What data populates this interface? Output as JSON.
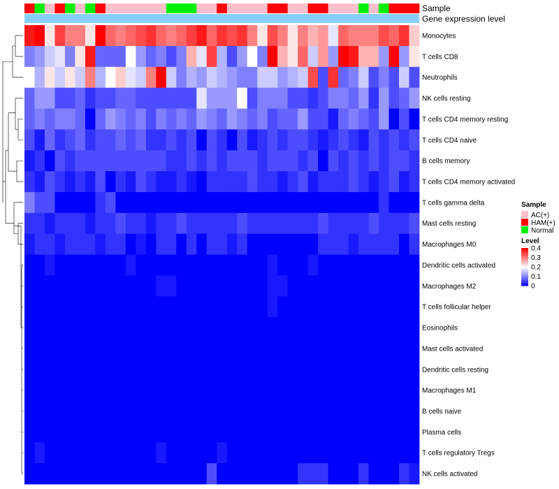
{
  "chart_data": {
    "type": "heatmap",
    "title": "",
    "annotation_labels": [
      "Sample",
      "Gene expression level"
    ],
    "sample_groups": [
      "HAM(+)",
      "Normal",
      "AC(+)",
      "HAM(+)",
      "Normal",
      "AC(+)",
      "Normal",
      "HAM(+)",
      "AC(+)",
      "AC(+)",
      "AC(+)",
      "AC(+)",
      "AC(+)",
      "AC(+)",
      "Normal",
      "Normal",
      "Normal",
      "AC(+)",
      "AC(+)",
      "HAM(+)",
      "AC(+)",
      "AC(+)",
      "AC(+)",
      "AC(+)",
      "HAM(+)",
      "HAM(+)",
      "AC(+)",
      "AC(+)",
      "HAM(+)",
      "HAM(+)",
      "AC(+)",
      "AC(+)",
      "AC(+)",
      "Normal",
      "AC(+)",
      "Normal",
      "HAM(+)",
      "HAM(+)",
      "HAM(+)"
    ],
    "group_colors": {
      "AC(+)": "#FFC0CB",
      "HAM(+)": "#FF0000",
      "Normal": "#00EE00"
    },
    "expression_bar_color": "#87CEFA",
    "rows": [
      "Monocytes",
      "T cells CD8",
      "Neutrophils",
      "NK cells resting",
      "T cells CD4 memory resting",
      "T cells CD4 naive",
      "B cells memory",
      "T cells CD4 memory activated",
      "T cells gamma delta",
      "Mast cells resting",
      "Macrophages M0",
      "Dendritic cells activated",
      "Macrophages M2",
      "T cells follicular helper",
      "Eosinophils",
      "Mast cells activated",
      "Dendritic cells resting",
      "Macrophages M1",
      "B cells naive",
      "Plasma cells",
      "T cells regulatory  Tregs",
      "NK cells activated"
    ],
    "values": [
      [
        0.38,
        0.4,
        0.22,
        0.35,
        0.3,
        0.3,
        0.22,
        0.4,
        0.32,
        0.3,
        0.32,
        0.34,
        0.36,
        0.32,
        0.3,
        0.32,
        0.35,
        0.38,
        0.32,
        0.36,
        0.34,
        0.36,
        0.3,
        0.22,
        0.34,
        0.3,
        0.22,
        0.3,
        0.26,
        0.28,
        0.18,
        0.32,
        0.3,
        0.3,
        0.3,
        0.34,
        0.32,
        0.36,
        0.24
      ],
      [
        0.1,
        0.12,
        0.16,
        0.18,
        0.1,
        0.22,
        0.38,
        0.08,
        0.08,
        0.08,
        0.2,
        0.12,
        0.08,
        0.1,
        0.06,
        0.1,
        0.26,
        0.18,
        0.35,
        0.14,
        0.06,
        0.12,
        0.2,
        0.1,
        0.4,
        0.26,
        0.22,
        0.32,
        0.16,
        0.28,
        0.12,
        0.4,
        0.38,
        0.26,
        0.26,
        0.12,
        0.4,
        0.12,
        0.22
      ],
      [
        0.2,
        0.14,
        0.22,
        0.16,
        0.22,
        0.16,
        0.3,
        0.14,
        0.2,
        0.24,
        0.18,
        0.16,
        0.3,
        0.4,
        0.16,
        0.1,
        0.14,
        0.12,
        0.16,
        0.14,
        0.12,
        0.1,
        0.1,
        0.16,
        0.16,
        0.12,
        0.14,
        0.16,
        0.34,
        0.06,
        0.36,
        0.08,
        0.1,
        0.16,
        0.06,
        0.1,
        0.06,
        0.16,
        0.06
      ],
      [
        0.08,
        0.12,
        0.12,
        0.06,
        0.06,
        0.08,
        0.04,
        0.06,
        0.06,
        0.08,
        0.08,
        0.06,
        0.06,
        0.06,
        0.06,
        0.06,
        0.06,
        0.18,
        0.12,
        0.12,
        0.12,
        0.2,
        0.06,
        0.1,
        0.1,
        0.1,
        0.06,
        0.06,
        0.04,
        0.06,
        0.1,
        0.1,
        0.08,
        0.12,
        0.04,
        0.12,
        0.06,
        0.08,
        0.12
      ],
      [
        0.08,
        0.1,
        0.08,
        0.1,
        0.1,
        0.08,
        0.0,
        0.08,
        0.12,
        0.1,
        0.08,
        0.1,
        0.06,
        0.1,
        0.08,
        0.1,
        0.08,
        0.12,
        0.1,
        0.08,
        0.12,
        0.1,
        0.08,
        0.1,
        0.06,
        0.08,
        0.08,
        0.12,
        0.06,
        0.06,
        0.02,
        0.08,
        0.1,
        0.08,
        0.06,
        0.12,
        0.0,
        0.06,
        0.0
      ],
      [
        0.06,
        0.02,
        0.08,
        0.04,
        0.06,
        0.08,
        0.04,
        0.06,
        0.06,
        0.08,
        0.06,
        0.08,
        0.04,
        0.04,
        0.06,
        0.04,
        0.06,
        0.0,
        0.06,
        0.04,
        0.0,
        0.06,
        0.02,
        0.04,
        0.06,
        0.04,
        0.06,
        0.06,
        0.04,
        0.02,
        0.04,
        0.06,
        0.04,
        0.02,
        0.06,
        0.04,
        0.06,
        0.04,
        0.06
      ],
      [
        0.02,
        0.04,
        0.0,
        0.06,
        0.04,
        0.06,
        0.06,
        0.06,
        0.06,
        0.06,
        0.06,
        0.06,
        0.06,
        0.06,
        0.04,
        0.04,
        0.06,
        0.04,
        0.06,
        0.04,
        0.06,
        0.06,
        0.06,
        0.04,
        0.06,
        0.06,
        0.06,
        0.04,
        0.06,
        0.0,
        0.06,
        0.04,
        0.06,
        0.04,
        0.06,
        0.04,
        0.06,
        0.06,
        0.04
      ],
      [
        0.04,
        0.02,
        0.06,
        0.04,
        0.02,
        0.04,
        0.02,
        0.06,
        0.0,
        0.04,
        0.02,
        0.06,
        0.04,
        0.02,
        0.02,
        0.04,
        0.02,
        0.0,
        0.04,
        0.04,
        0.04,
        0.04,
        0.06,
        0.04,
        0.04,
        0.02,
        0.04,
        0.06,
        0.02,
        0.04,
        0.04,
        0.04,
        0.06,
        0.04,
        0.02,
        0.04,
        0.06,
        0.02,
        0.04
      ],
      [
        0.1,
        0.06,
        0.06,
        0.0,
        0.0,
        0.0,
        0.0,
        0.04,
        0.06,
        0.0,
        0.0,
        0.0,
        0.0,
        0.0,
        0.0,
        0.0,
        0.0,
        0.0,
        0.0,
        0.0,
        0.0,
        0.0,
        0.0,
        0.0,
        0.0,
        0.0,
        0.0,
        0.0,
        0.0,
        0.0,
        0.0,
        0.0,
        0.0,
        0.0,
        0.0,
        0.04,
        0.0,
        0.0,
        0.0
      ],
      [
        0.04,
        0.04,
        0.02,
        0.04,
        0.04,
        0.04,
        0.02,
        0.04,
        0.04,
        0.06,
        0.04,
        0.04,
        0.02,
        0.04,
        0.04,
        0.06,
        0.04,
        0.04,
        0.04,
        0.04,
        0.04,
        0.06,
        0.04,
        0.04,
        0.04,
        0.04,
        0.04,
        0.04,
        0.04,
        0.06,
        0.04,
        0.04,
        0.04,
        0.04,
        0.06,
        0.04,
        0.04,
        0.04,
        0.06
      ],
      [
        0.02,
        0.04,
        0.04,
        0.02,
        0.04,
        0.04,
        0.04,
        0.02,
        0.04,
        0.04,
        0.0,
        0.02,
        0.0,
        0.04,
        0.04,
        0.0,
        0.04,
        0.0,
        0.04,
        0.04,
        0.02,
        0.04,
        0.0,
        0.0,
        0.0,
        0.0,
        0.0,
        0.0,
        0.0,
        0.04,
        0.04,
        0.04,
        0.02,
        0.04,
        0.04,
        0.04,
        0.04,
        0.0,
        0.04
      ],
      [
        0.0,
        0.0,
        0.02,
        0.0,
        0.0,
        0.0,
        0.0,
        0.0,
        0.0,
        0.0,
        0.02,
        0.0,
        0.0,
        0.0,
        0.0,
        0.0,
        0.0,
        0.0,
        0.0,
        0.0,
        0.0,
        0.0,
        0.0,
        0.0,
        0.02,
        0.0,
        0.0,
        0.0,
        0.02,
        0.0,
        0.0,
        0.0,
        0.0,
        0.0,
        0.0,
        0.0,
        0.0,
        0.0,
        0.0
      ],
      [
        0.0,
        0.0,
        0.0,
        0.0,
        0.0,
        0.0,
        0.0,
        0.0,
        0.0,
        0.0,
        0.0,
        0.0,
        0.0,
        0.02,
        0.02,
        0.0,
        0.0,
        0.0,
        0.0,
        0.0,
        0.0,
        0.0,
        0.0,
        0.0,
        0.02,
        0.02,
        0.0,
        0.0,
        0.0,
        0.0,
        0.0,
        0.0,
        0.0,
        0.0,
        0.0,
        0.0,
        0.0,
        0.0,
        0.0
      ],
      [
        0.0,
        0.0,
        0.0,
        0.0,
        0.0,
        0.0,
        0.0,
        0.0,
        0.0,
        0.0,
        0.0,
        0.0,
        0.0,
        0.0,
        0.0,
        0.0,
        0.0,
        0.0,
        0.0,
        0.0,
        0.0,
        0.0,
        0.0,
        0.0,
        0.02,
        0.0,
        0.0,
        0.0,
        0.0,
        0.0,
        0.0,
        0.0,
        0.0,
        0.0,
        0.0,
        0.0,
        0.0,
        0.0,
        0.0
      ],
      [
        0.0,
        0.0,
        0.0,
        0.0,
        0.0,
        0.0,
        0.0,
        0.0,
        0.0,
        0.0,
        0.0,
        0.0,
        0.0,
        0.0,
        0.0,
        0.0,
        0.0,
        0.0,
        0.0,
        0.0,
        0.0,
        0.0,
        0.0,
        0.0,
        0.0,
        0.0,
        0.0,
        0.0,
        0.0,
        0.0,
        0.0,
        0.0,
        0.0,
        0.0,
        0.0,
        0.0,
        0.0,
        0.0,
        0.0
      ],
      [
        0.0,
        0.0,
        0.0,
        0.0,
        0.0,
        0.0,
        0.0,
        0.0,
        0.0,
        0.0,
        0.0,
        0.0,
        0.0,
        0.0,
        0.0,
        0.0,
        0.0,
        0.0,
        0.0,
        0.0,
        0.0,
        0.0,
        0.0,
        0.0,
        0.0,
        0.0,
        0.0,
        0.0,
        0.0,
        0.0,
        0.0,
        0.0,
        0.0,
        0.0,
        0.0,
        0.0,
        0.0,
        0.0,
        0.0
      ],
      [
        0.0,
        0.0,
        0.0,
        0.0,
        0.0,
        0.0,
        0.0,
        0.0,
        0.0,
        0.0,
        0.0,
        0.0,
        0.0,
        0.0,
        0.0,
        0.0,
        0.0,
        0.0,
        0.0,
        0.0,
        0.0,
        0.0,
        0.0,
        0.0,
        0.0,
        0.0,
        0.0,
        0.0,
        0.0,
        0.0,
        0.0,
        0.0,
        0.0,
        0.0,
        0.0,
        0.0,
        0.0,
        0.0,
        0.0
      ],
      [
        0.0,
        0.0,
        0.0,
        0.0,
        0.0,
        0.0,
        0.0,
        0.0,
        0.0,
        0.0,
        0.0,
        0.0,
        0.0,
        0.0,
        0.0,
        0.0,
        0.0,
        0.0,
        0.0,
        0.0,
        0.0,
        0.0,
        0.0,
        0.0,
        0.0,
        0.0,
        0.0,
        0.0,
        0.0,
        0.0,
        0.0,
        0.0,
        0.0,
        0.0,
        0.0,
        0.0,
        0.0,
        0.0,
        0.0
      ],
      [
        0.0,
        0.0,
        0.0,
        0.0,
        0.0,
        0.0,
        0.0,
        0.0,
        0.0,
        0.0,
        0.0,
        0.0,
        0.0,
        0.0,
        0.0,
        0.0,
        0.0,
        0.0,
        0.0,
        0.0,
        0.0,
        0.0,
        0.0,
        0.0,
        0.0,
        0.0,
        0.0,
        0.0,
        0.0,
        0.0,
        0.0,
        0.0,
        0.0,
        0.0,
        0.0,
        0.0,
        0.0,
        0.0,
        0.0
      ],
      [
        0.0,
        0.0,
        0.0,
        0.0,
        0.0,
        0.0,
        0.0,
        0.0,
        0.0,
        0.0,
        0.0,
        0.0,
        0.0,
        0.0,
        0.0,
        0.0,
        0.0,
        0.0,
        0.0,
        0.0,
        0.0,
        0.0,
        0.0,
        0.0,
        0.0,
        0.0,
        0.0,
        0.0,
        0.0,
        0.0,
        0.0,
        0.0,
        0.0,
        0.0,
        0.0,
        0.0,
        0.0,
        0.0,
        0.0
      ],
      [
        0.0,
        0.02,
        0.0,
        0.0,
        0.0,
        0.0,
        0.0,
        0.0,
        0.0,
        0.0,
        0.0,
        0.0,
        0.0,
        0.02,
        0.0,
        0.0,
        0.0,
        0.0,
        0.0,
        0.02,
        0.0,
        0.0,
        0.0,
        0.0,
        0.0,
        0.0,
        0.0,
        0.0,
        0.0,
        0.0,
        0.0,
        0.0,
        0.0,
        0.0,
        0.0,
        0.0,
        0.0,
        0.0,
        0.0
      ],
      [
        0.0,
        0.0,
        0.0,
        0.0,
        0.0,
        0.0,
        0.0,
        0.0,
        0.0,
        0.0,
        0.0,
        0.0,
        0.0,
        0.0,
        0.0,
        0.0,
        0.0,
        0.0,
        0.06,
        0.0,
        0.0,
        0.0,
        0.0,
        0.0,
        0.0,
        0.0,
        0.0,
        0.04,
        0.04,
        0.04,
        0.0,
        0.0,
        0.0,
        0.04,
        0.0,
        0.0,
        0.0,
        0.04,
        0.02
      ]
    ],
    "legend_sample": {
      "title": "Sample",
      "entries": [
        "AC(+)",
        "HAM(+)",
        "Normal"
      ]
    },
    "legend_level": {
      "title": "Level",
      "ticks": [
        "0.4",
        "0.3",
        "0.2",
        "0.1",
        "0"
      ],
      "range": [
        0,
        0.4
      ]
    },
    "color_scale": {
      "low": "#0000FF",
      "mid": "#FFFFFF",
      "high": "#FF0000",
      "mid_value": 0.2
    }
  }
}
